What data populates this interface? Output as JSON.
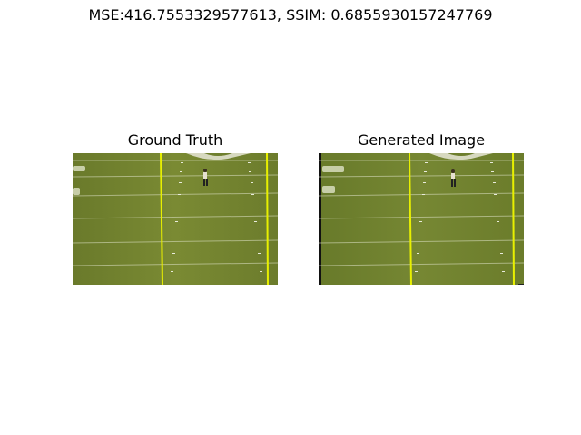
{
  "figure": {
    "suptitle": "MSE:416.7553329577613, SSIM: 0.6855930157247769"
  },
  "panels": [
    {
      "title": "Ground Truth"
    },
    {
      "title": "Generated Image"
    }
  ],
  "colors": {
    "turf": "#6e7f2c",
    "turf_light": "#7c8c34",
    "yard_line": "#e8f000",
    "hash": "#e9ecdc",
    "background": "#ffffff"
  }
}
